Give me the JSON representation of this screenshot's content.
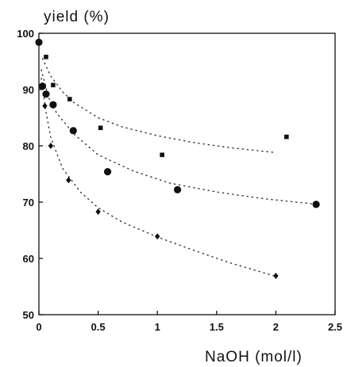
{
  "chart_data": {
    "type": "scatter",
    "ylabel": "yield (%)",
    "xlabel": "NaOH (mol/l)",
    "xlim": [
      0,
      2.5
    ],
    "ylim": [
      50,
      100
    ],
    "xticks": [
      0,
      0.5,
      1,
      1.5,
      2,
      2.5
    ],
    "yticks": [
      50,
      60,
      70,
      80,
      90,
      100
    ],
    "xtick_labels": [
      "0",
      "0.5",
      "1",
      "1.5",
      "2",
      "2.5"
    ],
    "ytick_labels": [
      "50",
      "60",
      "70",
      "80",
      "90",
      "100"
    ],
    "grid": false,
    "series": [
      {
        "marker": "square",
        "fit_line": "dotted",
        "x": [
          0.06,
          0.12,
          0.26,
          0.52,
          1.04,
          2.09
        ],
        "y": [
          95.8,
          90.8,
          88.3,
          83.2,
          78.4,
          81.6
        ],
        "fit_x": [
          0.03,
          0.1,
          0.2,
          0.3,
          0.5,
          0.7,
          1.0,
          1.3,
          1.6,
          2.0
        ],
        "fit_y": [
          95.5,
          92.4,
          89.6,
          87.6,
          85.0,
          83.4,
          81.8,
          80.6,
          79.7,
          78.8
        ]
      },
      {
        "marker": "circle",
        "fit_line": "dotted",
        "x": [
          0,
          0.03,
          0.06,
          0.12,
          0.29,
          0.58,
          1.17,
          2.34
        ],
        "y": [
          98.4,
          90.6,
          89.2,
          87.3,
          82.7,
          75.4,
          72.2,
          69.6
        ],
        "fit_x": [
          0.02,
          0.08,
          0.15,
          0.3,
          0.5,
          0.8,
          1.1,
          1.5,
          1.9,
          2.35
        ],
        "fit_y": [
          93.5,
          88.7,
          85.8,
          82.0,
          78.4,
          75.5,
          73.4,
          71.8,
          70.6,
          69.6
        ]
      },
      {
        "marker": "diamond",
        "fit_line": "dotted",
        "x": [
          0.05,
          0.1,
          0.25,
          0.5,
          1.0,
          2.0
        ],
        "y": [
          87.1,
          80.0,
          73.9,
          68.3,
          63.9,
          56.9
        ],
        "fit_x": [
          0.02,
          0.06,
          0.1,
          0.2,
          0.35,
          0.5,
          0.7,
          1.0,
          1.3,
          1.6,
          2.0
        ],
        "fit_y": [
          92.0,
          86.0,
          81.5,
          76.0,
          71.8,
          69.0,
          66.5,
          63.8,
          61.5,
          59.3,
          56.8
        ]
      }
    ]
  }
}
